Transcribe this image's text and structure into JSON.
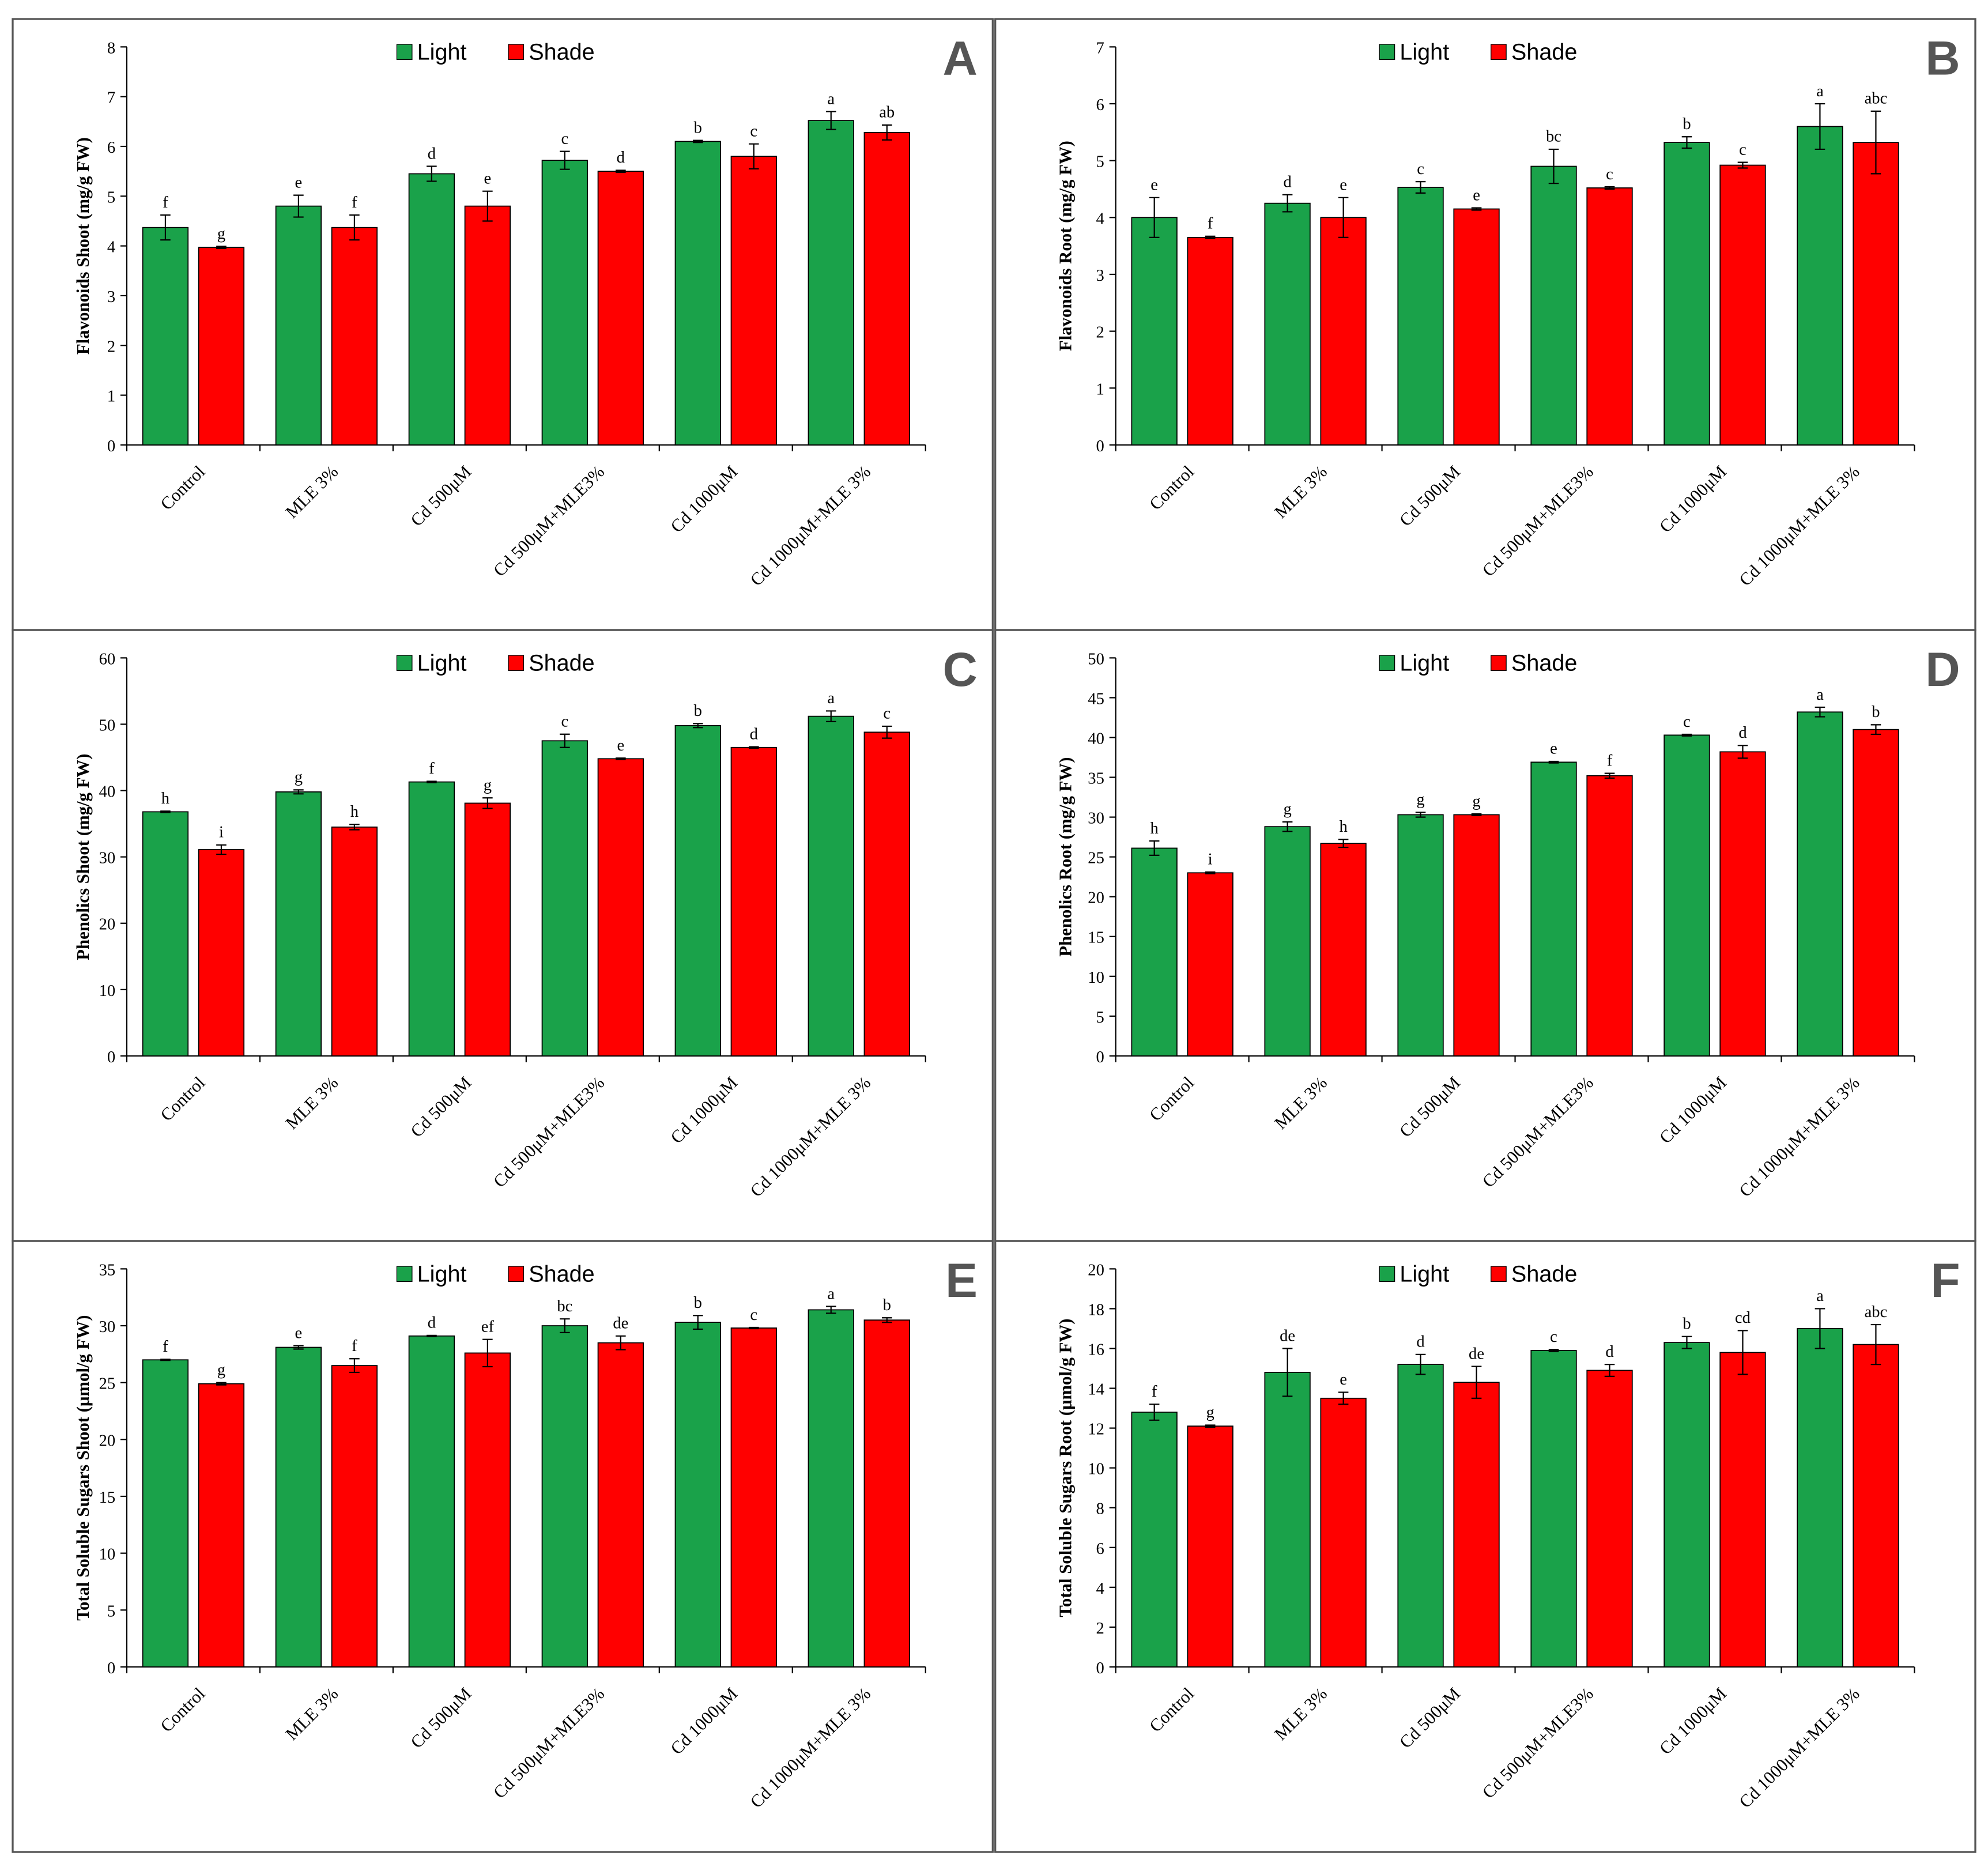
{
  "chart_data": [
    {
      "type": "bar",
      "panel": "A",
      "ylabel": "Flavonoids Shoot (mg/g FW)",
      "categories": [
        "Control",
        "MLE 3%",
        "Cd 500μM",
        "Cd 500μM+MLE3%",
        "Cd 1000μM",
        "Cd 1000μM+MLE 3%"
      ],
      "ylim": [
        0,
        8
      ],
      "yticks": [
        0,
        1,
        2,
        3,
        4,
        5,
        6,
        7,
        8
      ],
      "series": [
        {
          "name": "Light",
          "color": "#1aa24a",
          "values": [
            4.37,
            4.8,
            5.45,
            5.72,
            6.1,
            6.52
          ],
          "errors": [
            0.25,
            0.22,
            0.15,
            0.18,
            0.02,
            0.18
          ],
          "letters": [
            "f",
            "e",
            "d",
            "c",
            "b",
            "a"
          ]
        },
        {
          "name": "Shade",
          "color": "#ff0000",
          "values": [
            3.97,
            4.37,
            4.8,
            5.5,
            5.8,
            6.28
          ],
          "errors": [
            0.02,
            0.25,
            0.3,
            0.02,
            0.25,
            0.15
          ],
          "letters": [
            "g",
            "f",
            "e",
            "d",
            "c",
            "ab"
          ]
        }
      ]
    },
    {
      "type": "bar",
      "panel": "B",
      "ylabel": "Flavonoids Root (mg/g FW)",
      "categories": [
        "Control",
        "MLE 3%",
        "Cd 500μM",
        "Cd 500μM+MLE3%",
        "Cd 1000μM",
        "Cd 1000μM+MLE 3%"
      ],
      "ylim": [
        0,
        7
      ],
      "yticks": [
        0,
        1,
        2,
        3,
        4,
        5,
        6,
        7
      ],
      "series": [
        {
          "name": "Light",
          "color": "#1aa24a",
          "values": [
            4.0,
            4.25,
            4.53,
            4.9,
            5.32,
            5.6
          ],
          "errors": [
            0.35,
            0.15,
            0.1,
            0.3,
            0.1,
            0.4
          ],
          "letters": [
            "e",
            "d",
            "c",
            "bc",
            "b",
            "a"
          ]
        },
        {
          "name": "Shade",
          "color": "#ff0000",
          "values": [
            3.65,
            4.0,
            4.15,
            4.52,
            4.92,
            5.32
          ],
          "errors": [
            0.02,
            0.35,
            0.02,
            0.02,
            0.05,
            0.55
          ],
          "letters": [
            "f",
            "e",
            "e",
            "c",
            "c",
            "abc"
          ]
        }
      ]
    },
    {
      "type": "bar",
      "panel": "C",
      "ylabel": "Phenolics Shoot (mg/g FW)",
      "categories": [
        "Control",
        "MLE 3%",
        "Cd 500μM",
        "Cd 500μM+MLE3%",
        "Cd 1000μM",
        "Cd 1000μM+MLE 3%"
      ],
      "ylim": [
        0,
        60
      ],
      "yticks": [
        0,
        10,
        20,
        30,
        40,
        50,
        60
      ],
      "series": [
        {
          "name": "Light",
          "color": "#1aa24a",
          "values": [
            36.8,
            39.8,
            41.3,
            47.5,
            49.8,
            51.2
          ],
          "errors": [
            0.1,
            0.3,
            0.1,
            1.0,
            0.3,
            0.8
          ],
          "letters": [
            "h",
            "g",
            "f",
            "c",
            "b",
            "a"
          ]
        },
        {
          "name": "Shade",
          "color": "#ff0000",
          "values": [
            31.1,
            34.5,
            38.1,
            44.8,
            46.5,
            48.8
          ],
          "errors": [
            0.7,
            0.4,
            0.8,
            0.1,
            0.1,
            0.9
          ],
          "letters": [
            "i",
            "h",
            "g",
            "e",
            "d",
            "c"
          ]
        }
      ]
    },
    {
      "type": "bar",
      "panel": "D",
      "ylabel": "Phenolics Root (mg/g FW)",
      "categories": [
        "Control",
        "MLE 3%",
        "Cd 500μM",
        "Cd 500μM+MLE3%",
        "Cd 1000μM",
        "Cd 1000μM+MLE 3%"
      ],
      "ylim": [
        0,
        50
      ],
      "yticks": [
        0,
        5,
        10,
        15,
        20,
        25,
        30,
        35,
        40,
        45,
        50
      ],
      "series": [
        {
          "name": "Light",
          "color": "#1aa24a",
          "values": [
            26.1,
            28.8,
            30.3,
            36.9,
            40.3,
            43.2
          ],
          "errors": [
            0.9,
            0.6,
            0.3,
            0.1,
            0.1,
            0.6
          ],
          "letters": [
            "h",
            "g",
            "g",
            "e",
            "c",
            "a"
          ]
        },
        {
          "name": "Shade",
          "color": "#ff0000",
          "values": [
            23.0,
            26.7,
            30.3,
            35.2,
            38.2,
            41.0
          ],
          "errors": [
            0.1,
            0.5,
            0.1,
            0.3,
            0.8,
            0.6
          ],
          "letters": [
            "i",
            "h",
            "g",
            "f",
            "d",
            "b"
          ]
        }
      ]
    },
    {
      "type": "bar",
      "panel": "E",
      "ylabel": "Total Soluble Sugars Shoot (μmol/g FW)",
      "categories": [
        "Control",
        "MLE 3%",
        "Cd 500μM",
        "Cd 500μM+MLE3%",
        "Cd 1000μM",
        "Cd 1000μM+MLE 3%"
      ],
      "ylim": [
        0,
        35
      ],
      "yticks": [
        0,
        5,
        10,
        15,
        20,
        25,
        30,
        35
      ],
      "series": [
        {
          "name": "Light",
          "color": "#1aa24a",
          "values": [
            27.0,
            28.1,
            29.1,
            30.0,
            30.3,
            31.4
          ],
          "errors": [
            0.05,
            0.15,
            0.05,
            0.6,
            0.6,
            0.3
          ],
          "letters": [
            "f",
            "e",
            "d",
            "bc",
            "b",
            "a"
          ]
        },
        {
          "name": "Shade",
          "color": "#ff0000",
          "values": [
            24.9,
            26.5,
            27.6,
            28.5,
            29.8,
            30.5
          ],
          "errors": [
            0.1,
            0.6,
            1.2,
            0.6,
            0.05,
            0.2
          ],
          "letters": [
            "g",
            "f",
            "ef",
            "de",
            "c",
            "b"
          ]
        }
      ]
    },
    {
      "type": "bar",
      "panel": "F",
      "ylabel": "Total Soluble Sugars Root (μmol/g FW)",
      "categories": [
        "Control",
        "MLE 3%",
        "Cd 500μM",
        "Cd 500μM+MLE3%",
        "Cd 1000μM",
        "Cd 1000μM+MLE 3%"
      ],
      "ylim": [
        0,
        20
      ],
      "yticks": [
        0,
        2,
        4,
        6,
        8,
        10,
        12,
        14,
        16,
        18,
        20
      ],
      "series": [
        {
          "name": "Light",
          "color": "#1aa24a",
          "values": [
            12.8,
            14.8,
            15.2,
            15.9,
            16.3,
            17.0
          ],
          "errors": [
            0.4,
            1.2,
            0.5,
            0.05,
            0.3,
            1.0
          ],
          "letters": [
            "f",
            "de",
            "d",
            "c",
            "b",
            "a"
          ]
        },
        {
          "name": "Shade",
          "color": "#ff0000",
          "values": [
            12.1,
            13.5,
            14.3,
            14.9,
            15.8,
            16.2
          ],
          "errors": [
            0.05,
            0.3,
            0.8,
            0.3,
            1.1,
            1.0
          ],
          "letters": [
            "g",
            "e",
            "de",
            "d",
            "cd",
            "abc"
          ]
        }
      ]
    }
  ]
}
